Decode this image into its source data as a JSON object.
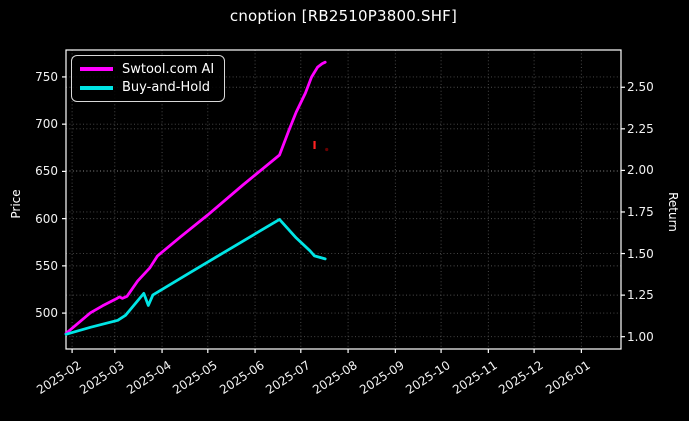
{
  "chart_data": {
    "type": "line",
    "title": "cnoption [RB2510P3800.SHF]",
    "xlabel": "",
    "grid": true,
    "background_color": "#000000",
    "xlim": [
      "2025-01-28",
      "2026-01-27"
    ],
    "x_ticks": [
      "2025-02",
      "2025-03",
      "2025-04",
      "2025-05",
      "2025-06",
      "2025-07",
      "2025-08",
      "2025-09",
      "2025-10",
      "2025-11",
      "2025-12",
      "2026-01"
    ],
    "left_axis": {
      "label": "Price",
      "ticks": [
        500,
        550,
        600,
        650,
        700,
        750
      ],
      "lim": [
        462,
        778.5
      ]
    },
    "right_axis": {
      "label": "Return",
      "ticks": [
        1.0,
        1.25,
        1.5,
        1.75,
        2.0,
        2.25,
        2.5
      ],
      "lim": [
        0.926,
        2.724
      ]
    },
    "legend": {
      "position": "upper-left",
      "entries": [
        {
          "label": "Swtool.com AI",
          "color": "#ff00ff"
        },
        {
          "label": "Buy-and-Hold",
          "color": "#00e5e5"
        }
      ]
    },
    "series": [
      {
        "name": "Swtool.com AI",
        "color": "#ff00ff",
        "points": [
          {
            "date": "2025-01-28",
            "price": 478.5,
            "return": 1.019
          },
          {
            "date": "2025-02-13",
            "price": 500.3,
            "return": 1.143
          },
          {
            "date": "2025-02-21",
            "price": 507.7,
            "return": 1.185
          },
          {
            "date": "2025-03-02",
            "price": 515.1,
            "return": 1.227
          },
          {
            "date": "2025-03-04",
            "price": 517.2,
            "return": 1.239
          },
          {
            "date": "2025-03-06",
            "price": 515.6,
            "return": 1.23
          },
          {
            "date": "2025-03-09",
            "price": 517.8,
            "return": 1.242
          },
          {
            "date": "2025-03-16",
            "price": 534.1,
            "return": 1.335
          },
          {
            "date": "2025-03-24",
            "price": 547.9,
            "return": 1.413
          },
          {
            "date": "2025-03-29",
            "price": 560.6,
            "return": 1.485
          },
          {
            "date": "2025-04-13",
            "price": 580.7,
            "return": 1.6
          },
          {
            "date": "2025-05-01",
            "price": 603.9,
            "return": 1.732
          },
          {
            "date": "2025-05-24",
            "price": 635.6,
            "return": 1.912
          },
          {
            "date": "2025-06-17",
            "price": 667.4,
            "return": 2.093
          },
          {
            "date": "2025-06-23",
            "price": 692.7,
            "return": 2.237
          },
          {
            "date": "2025-06-28",
            "price": 712.8,
            "return": 2.351
          },
          {
            "date": "2025-07-04",
            "price": 732.9,
            "return": 2.465
          },
          {
            "date": "2025-07-08",
            "price": 749.8,
            "return": 2.562
          },
          {
            "date": "2025-07-12",
            "price": 760.4,
            "return": 2.622
          },
          {
            "date": "2025-07-15",
            "price": 764.1,
            "return": 2.643
          },
          {
            "date": "2025-07-17",
            "price": 765.6,
            "return": 2.652
          }
        ]
      },
      {
        "name": "Buy-and-Hold",
        "color": "#00e5e5",
        "points": [
          {
            "date": "2025-01-28",
            "price": 477.6,
            "return": 1.013
          },
          {
            "date": "2025-02-13",
            "price": 485.0,
            "return": 1.055
          },
          {
            "date": "2025-03-03",
            "price": 492.4,
            "return": 1.097
          },
          {
            "date": "2025-03-08",
            "price": 497.7,
            "return": 1.127
          },
          {
            "date": "2025-03-20",
            "price": 520.9,
            "return": 1.26
          },
          {
            "date": "2025-03-23",
            "price": 508.2,
            "return": 1.188
          },
          {
            "date": "2025-03-26",
            "price": 519.3,
            "return": 1.251
          },
          {
            "date": "2025-04-19",
            "price": 542.6,
            "return": 1.383
          },
          {
            "date": "2025-06-17",
            "price": 599.2,
            "return": 1.705
          },
          {
            "date": "2025-06-28",
            "price": 579.6,
            "return": 1.593
          },
          {
            "date": "2025-07-07",
            "price": 565.9,
            "return": 1.515
          },
          {
            "date": "2025-07-10",
            "price": 560.6,
            "return": 1.485
          },
          {
            "date": "2025-07-17",
            "price": 557.4,
            "return": 1.467
          }
        ]
      }
    ],
    "annotations": [
      {
        "type": "vertical-dash",
        "date": "2025-07-10",
        "price_from": 673.7,
        "price_to": 682.2,
        "color": "#ff2222"
      },
      {
        "type": "dot",
        "date": "2025-07-18",
        "price": 673.2,
        "color": "#8b0000"
      }
    ]
  }
}
